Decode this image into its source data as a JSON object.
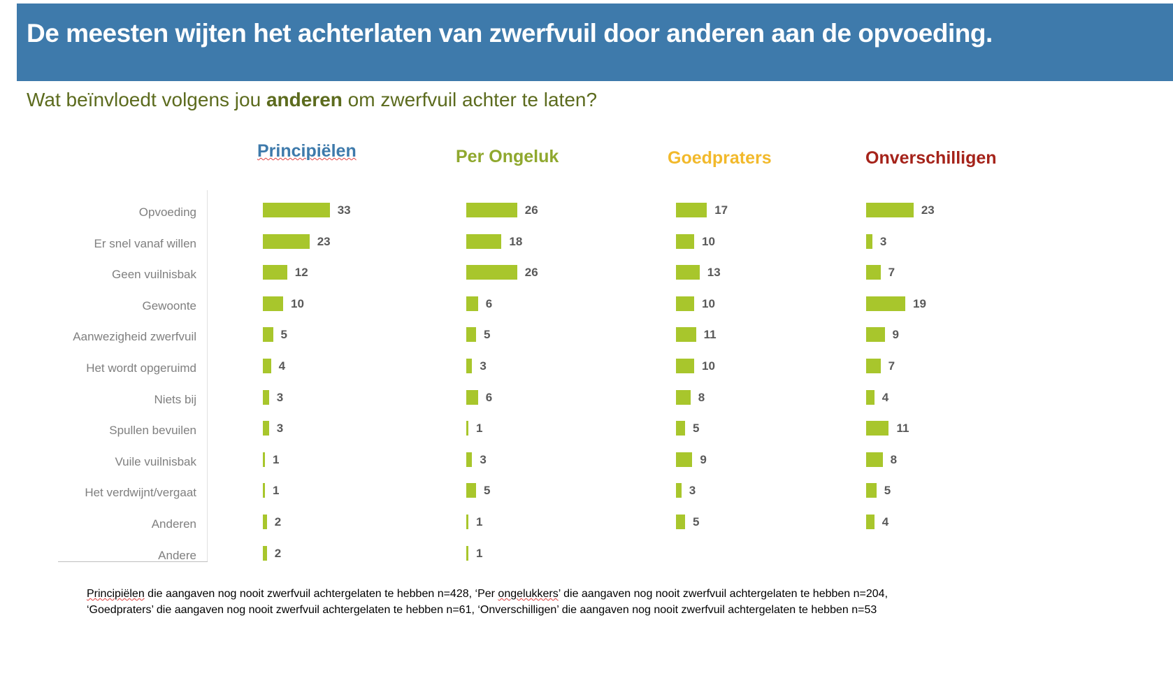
{
  "header": {
    "title": "De meesten wijten het achterlaten van zwerfvuil door anderen aan de opvoeding."
  },
  "subtitle": {
    "before": "Wat beïnvloedt volgens jou ",
    "bold": "anderen",
    "after": " om zwerfvuil achter te laten?"
  },
  "chart_data": {
    "type": "bar",
    "orientation": "horizontal",
    "categories": [
      "Opvoeding",
      "Er snel vanaf willen",
      "Geen vuilnisbak",
      "Gewoonte",
      "Aanwezigheid zwerfvuil",
      "Het wordt opgeruimd",
      "Niets bij",
      "Spullen bevuilen",
      "Vuile vuilnisbak",
      "Het verdwijnt/vergaat",
      "Anderen",
      "Andere"
    ],
    "series": [
      {
        "name": "Principiëlen",
        "color": "#3e7aab",
        "values": [
          33,
          23,
          12,
          10,
          5,
          4,
          3,
          3,
          1,
          1,
          2,
          2
        ]
      },
      {
        "name": "Per Ongeluk",
        "color": "#8fa82e",
        "values": [
          26,
          18,
          26,
          6,
          5,
          3,
          6,
          1,
          3,
          5,
          1,
          1
        ]
      },
      {
        "name": "Goedpraters",
        "color": "#f2b92b",
        "values": [
          17,
          10,
          13,
          10,
          11,
          10,
          8,
          5,
          9,
          3,
          5,
          null
        ]
      },
      {
        "name": "Onverschilligen",
        "color": "#a5231a",
        "values": [
          23,
          3,
          7,
          19,
          9,
          7,
          4,
          11,
          8,
          5,
          4,
          null
        ]
      }
    ],
    "bar_color": "#a8c62c",
    "data_labels": true,
    "grid": false
  },
  "footnote": {
    "line1_a": "Principiëlen",
    "line1_b": " die aangaven nog nooit zwerfvuil achtergelaten te hebben n=428, ‘Per ",
    "line1_c": "ongelukkers",
    "line1_d": "’ die aangaven nog nooit zwerfvuil achtergelaten te hebben n=204,",
    "line2": "‘Goedpraters’ die aangaven nog nooit zwerfvuil achtergelaten te hebben n=61, ‘Onverschilligen’ die aangaven nog nooit zwerfvuil achtergelaten te hebben n=53"
  }
}
